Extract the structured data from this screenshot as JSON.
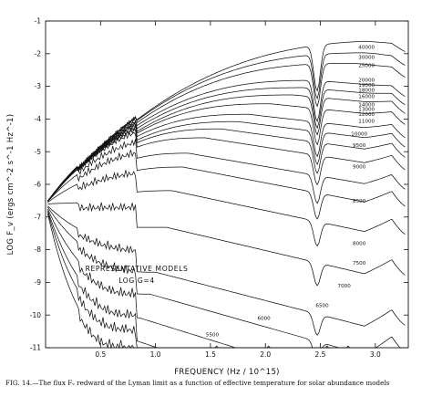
{
  "chart_data": {
    "type": "line",
    "xlabel": "FREQUENCY (Hz / 10^15)",
    "ylabel": "LOG F_v (ergs cm^-2 s^-1 Hz^-1)",
    "xlim": [
      0,
      3.3
    ],
    "ylim": [
      -11,
      -1
    ],
    "x_ticks": [
      "0.5",
      "1.0",
      "1.5",
      "2.0",
      "2.5",
      "3.0"
    ],
    "y_ticks": [
      "-1",
      "-2",
      "-3",
      "-4",
      "-5",
      "-6",
      "-7",
      "-8",
      "-9",
      "-10",
      "-11"
    ],
    "x_tick_values": [
      0.5,
      1.0,
      1.5,
      2.0,
      2.5,
      3.0
    ],
    "y_tick_values": [
      -1,
      -2,
      -3,
      -4,
      -5,
      -6,
      -7,
      -8,
      -9,
      -10,
      -11
    ],
    "annotation": [
      "REPRESENTATIVE MODELS",
      "LOG G=4"
    ],
    "series": [
      {
        "name": "40000",
        "peak_x": 3.3,
        "label_y": -1.9,
        "cutoff_x": null
      },
      {
        "name": "30000",
        "peak_x": 3.0,
        "label_y": -2.2,
        "cutoff_x": null
      },
      {
        "name": "25000",
        "peak_x": 2.8,
        "label_y": -2.45,
        "cutoff_x": null
      },
      {
        "name": "20000",
        "peak_x": 2.45,
        "label_y": -2.9,
        "cutoff_x": null
      },
      {
        "name": "19000",
        "peak_x": 2.35,
        "label_y": -3.05,
        "cutoff_x": null
      },
      {
        "name": "18000",
        "peak_x": 2.25,
        "label_y": -3.2,
        "cutoff_x": null
      },
      {
        "name": "16000",
        "peak_x": 2.05,
        "label_y": -3.4,
        "cutoff_x": null
      },
      {
        "name": "14000",
        "peak_x": 1.85,
        "label_y": -3.65,
        "cutoff_x": null
      },
      {
        "name": "13000",
        "peak_x": 1.75,
        "label_y": -3.8,
        "cutoff_x": null
      },
      {
        "name": "12000",
        "peak_x": 1.6,
        "label_y": -3.95,
        "cutoff_x": null
      },
      {
        "name": "11000",
        "peak_x": 1.45,
        "label_y": -4.15,
        "cutoff_x": null
      },
      {
        "name": "10000",
        "peak_x": 1.3,
        "label_y": -4.55,
        "cutoff_x": null
      },
      {
        "name": "9500",
        "peak_x": 1.25,
        "label_y": -4.9,
        "cutoff_x": null
      },
      {
        "name": "9000",
        "peak_x": 1.15,
        "label_y": -5.55,
        "cutoff_x": null
      },
      {
        "name": "8500",
        "peak_x": 1.1,
        "label_y": -6.6,
        "cutoff_x": null
      },
      {
        "name": "8000",
        "peak_x": 1.0,
        "label_y": -7.9,
        "cutoff_x": null
      },
      {
        "name": "7500",
        "peak_x": 0.95,
        "label_y": -8.5,
        "cutoff_x": null
      },
      {
        "name": "7000",
        "peak_x": 0.85,
        "label_y": -9.15,
        "cutoff_x": 2.75
      },
      {
        "name": "6500",
        "peak_x": 0.8,
        "label_y": -9.75,
        "cutoff_x": 2.55
      },
      {
        "name": "6000",
        "peak_x": 0.75,
        "label_y": -10.15,
        "cutoff_x": 2.02
      },
      {
        "name": "5500",
        "peak_x": 0.7,
        "label_y": -10.65,
        "cutoff_x": 1.55
      }
    ]
  },
  "caption": "FIG. 14.—The flux Fᵥ redward of the Lyman limit as a function of effective temperature for solar abundance models"
}
